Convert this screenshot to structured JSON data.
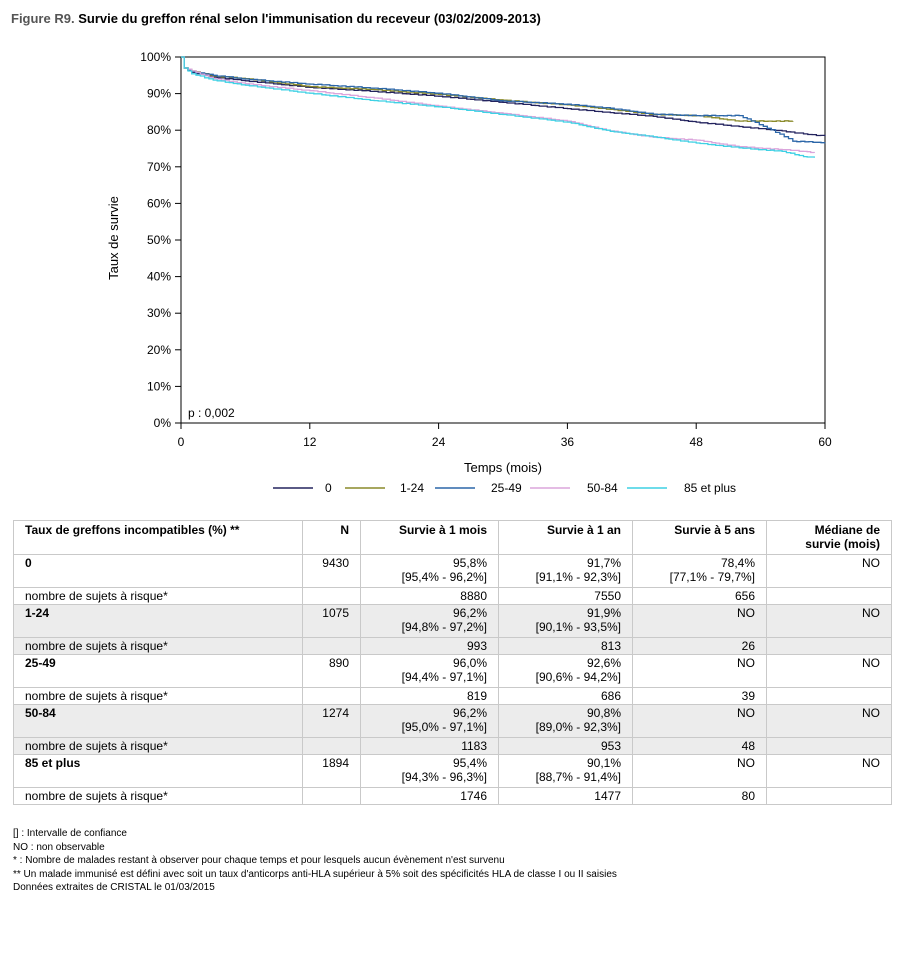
{
  "header": {
    "figure_label": "Figure R9.",
    "title": "Survie du greffon rénal selon l'immunisation du receveur (03/02/2009-2013)"
  },
  "chart_data": {
    "type": "line",
    "title": "Survie du greffon rénal selon l'immunisation du receveur (03/02/2009-2013)",
    "xlabel": "Temps (mois)",
    "ylabel": "Taux de survie",
    "xlim": [
      0,
      60
    ],
    "ylim": [
      0,
      100
    ],
    "xticks": [
      0,
      12,
      24,
      36,
      48,
      60
    ],
    "yticks": [
      0,
      10,
      20,
      30,
      40,
      50,
      60,
      70,
      80,
      90,
      100
    ],
    "ytick_labels": [
      "0%",
      "10%",
      "20%",
      "30%",
      "40%",
      "50%",
      "60%",
      "70%",
      "80%",
      "90%",
      "100%"
    ],
    "annotation": "p : 0,002",
    "grid": false,
    "legend_position": "bottom",
    "series": [
      {
        "name": "0",
        "color": "#23235e",
        "x": [
          0,
          0.3,
          1,
          3,
          6,
          12,
          18,
          24,
          30,
          36,
          40,
          44,
          48,
          52,
          56,
          58,
          60
        ],
        "y": [
          100,
          97,
          95.8,
          94.5,
          93.5,
          91.7,
          90.6,
          89.3,
          87.6,
          85.9,
          84.8,
          83.8,
          82.2,
          81,
          79.8,
          79,
          78.4
        ]
      },
      {
        "name": "1-24",
        "color": "#8a8a2a",
        "x": [
          0,
          0.3,
          1,
          3,
          6,
          12,
          18,
          24,
          30,
          36,
          40,
          44,
          48,
          52,
          57
        ],
        "y": [
          100,
          97,
          96.2,
          94.8,
          94.1,
          91.9,
          91.1,
          89.8,
          88.2,
          86.9,
          85.7,
          84.3,
          84,
          82.5,
          82.5
        ]
      },
      {
        "name": "25-49",
        "color": "#2b66a8",
        "x": [
          0,
          0.3,
          1,
          3,
          6,
          12,
          18,
          24,
          30,
          36,
          40,
          44,
          48,
          52,
          55,
          57,
          60
        ],
        "y": [
          100,
          97,
          96,
          95,
          94,
          92.6,
          91.5,
          90.1,
          88,
          87.1,
          86,
          84.4,
          84,
          84,
          80.1,
          77,
          76.6
        ]
      },
      {
        "name": "50-84",
        "color": "#dba5dc",
        "x": [
          0,
          0.3,
          1,
          3,
          6,
          12,
          18,
          24,
          30,
          36,
          40,
          44,
          48,
          52,
          56,
          58,
          59
        ],
        "y": [
          100,
          97,
          96.2,
          94.1,
          92.7,
          90.8,
          88.8,
          86.6,
          84.6,
          82.5,
          79.8,
          78.1,
          77.3,
          75.5,
          74.7,
          74.2,
          73.8
        ]
      },
      {
        "name": "85 et plus",
        "color": "#3fd1e4",
        "x": [
          0,
          0.3,
          1,
          3,
          6,
          12,
          18,
          24,
          30,
          36,
          40,
          44,
          48,
          52,
          56,
          58,
          59
        ],
        "y": [
          100,
          97,
          95.4,
          93.7,
          92.3,
          90.1,
          88.1,
          86.4,
          84.3,
          82.2,
          79.7,
          78.2,
          76.5,
          75.2,
          74.2,
          72.8,
          72.5
        ]
      }
    ]
  },
  "table": {
    "headers": [
      "Taux de greffons incompatibles (%) **",
      "N",
      "Survie à 1 mois",
      "Survie à 1 an",
      "Survie à 5 ans",
      "Médiane de survie (mois)"
    ],
    "risk_label": "nombre de sujets à risque*",
    "rows": [
      {
        "label": "0",
        "n": "9430",
        "m1": "95,8%",
        "m1_ci": "[95,4% - 96,2%]",
        "y1": "91,7%",
        "y1_ci": "[91,1% - 92,3%]",
        "y5": "78,4%",
        "y5_ci": "[77,1% - 79,7%]",
        "median": "NO",
        "risk": [
          "8880",
          "7550",
          "656"
        ]
      },
      {
        "label": "1-24",
        "n": "1075",
        "m1": "96,2%",
        "m1_ci": "[94,8% - 97,2%]",
        "y1": "91,9%",
        "y1_ci": "[90,1% - 93,5%]",
        "y5": "NO",
        "y5_ci": "",
        "median": "NO",
        "risk": [
          "993",
          "813",
          "26"
        ]
      },
      {
        "label": "25-49",
        "n": "890",
        "m1": "96,0%",
        "m1_ci": "[94,4% - 97,1%]",
        "y1": "92,6%",
        "y1_ci": "[90,6% - 94,2%]",
        "y5": "NO",
        "y5_ci": "",
        "median": "NO",
        "risk": [
          "819",
          "686",
          "39"
        ]
      },
      {
        "label": "50-84",
        "n": "1274",
        "m1": "96,2%",
        "m1_ci": "[95,0% - 97,1%]",
        "y1": "90,8%",
        "y1_ci": "[89,0% - 92,3%]",
        "y5": "NO",
        "y5_ci": "",
        "median": "NO",
        "risk": [
          "1183",
          "953",
          "48"
        ]
      },
      {
        "label": "85 et plus",
        "n": "1894",
        "m1": "95,4%",
        "m1_ci": "[94,3% - 96,3%]",
        "y1": "90,1%",
        "y1_ci": "[88,7% - 91,4%]",
        "y5": "NO",
        "y5_ci": "",
        "median": "NO",
        "risk": [
          "1746",
          "1477",
          "80"
        ]
      }
    ]
  },
  "notes": [
    "[] : Intervalle de confiance",
    "NO : non observable",
    "* : Nombre de malades restant à observer pour chaque temps et pour lesquels aucun évènement n'est survenu",
    "** Un malade immunisé est défini avec soit un taux d'anticorps anti-HLA supérieur à 5% soit des spécificités HLA de classe I ou II saisies",
    "Données extraites de CRISTAL le 01/03/2015"
  ]
}
